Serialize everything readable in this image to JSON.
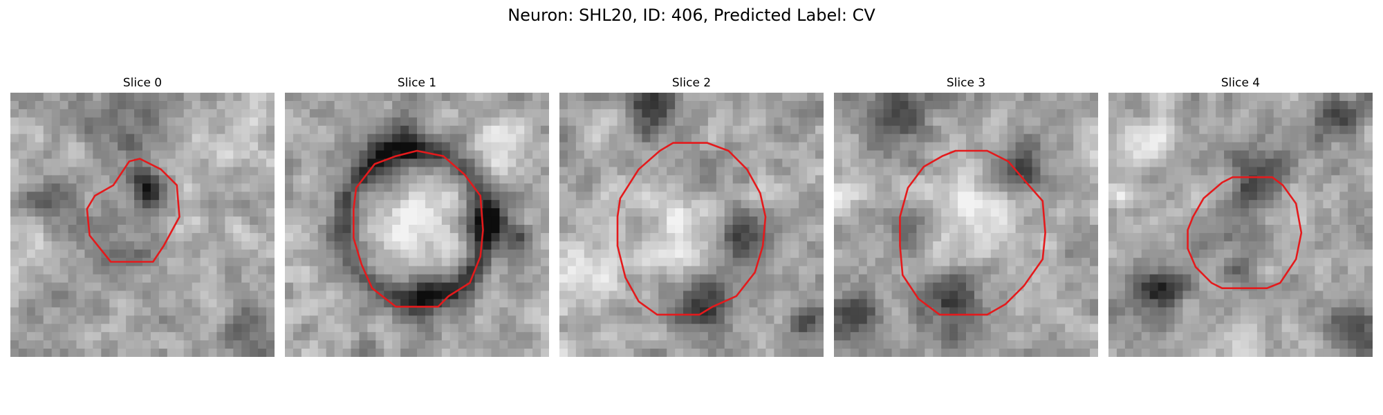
{
  "figure": {
    "title": "Neuron: SHL20, ID: 406, Predicted Label: CV",
    "contour_color": "#e41a1c",
    "slices": [
      {
        "label": "Slice 0",
        "seed": 11,
        "dark_blobs": [
          [
            0.52,
            0.36,
            0.07,
            0.55
          ],
          [
            0.4,
            0.6,
            0.12,
            0.25
          ],
          [
            0.15,
            0.45,
            0.12,
            0.25
          ],
          [
            0.45,
            0.1,
            0.18,
            0.2
          ],
          [
            0.9,
            0.9,
            0.1,
            0.25
          ]
        ],
        "light_blobs": [
          [
            0.85,
            0.15,
            0.15,
            0.2
          ],
          [
            0.1,
            0.55,
            0.08,
            0.2
          ]
        ],
        "contour": [
          [
            0.39,
            0.35
          ],
          [
            0.45,
            0.26
          ],
          [
            0.49,
            0.25
          ],
          [
            0.57,
            0.29
          ],
          [
            0.63,
            0.35
          ],
          [
            0.64,
            0.47
          ],
          [
            0.58,
            0.58
          ],
          [
            0.54,
            0.64
          ],
          [
            0.5,
            0.64
          ],
          [
            0.38,
            0.64
          ],
          [
            0.3,
            0.54
          ],
          [
            0.29,
            0.44
          ],
          [
            0.32,
            0.39
          ]
        ]
      },
      {
        "label": "Slice 1",
        "seed": 23,
        "dark_blobs": [
          [
            0.5,
            0.5,
            0.28,
            0.0
          ],
          [
            0.55,
            0.8,
            0.1,
            0.3
          ],
          [
            0.75,
            0.5,
            0.08,
            0.4
          ],
          [
            0.4,
            0.2,
            0.12,
            0.3
          ],
          [
            0.9,
            0.55,
            0.05,
            0.4
          ]
        ],
        "light_blobs": [
          [
            0.5,
            0.5,
            0.16,
            0.25
          ],
          [
            0.85,
            0.2,
            0.12,
            0.2
          ]
        ],
        "contour": [
          [
            0.27,
            0.36
          ],
          [
            0.34,
            0.27
          ],
          [
            0.42,
            0.24
          ],
          [
            0.5,
            0.22
          ],
          [
            0.6,
            0.24
          ],
          [
            0.68,
            0.31
          ],
          [
            0.74,
            0.39
          ],
          [
            0.75,
            0.52
          ],
          [
            0.74,
            0.62
          ],
          [
            0.7,
            0.72
          ],
          [
            0.62,
            0.77
          ],
          [
            0.58,
            0.81
          ],
          [
            0.42,
            0.81
          ],
          [
            0.33,
            0.74
          ],
          [
            0.29,
            0.65
          ],
          [
            0.26,
            0.55
          ],
          [
            0.26,
            0.44
          ]
        ]
      },
      {
        "label": "Slice 2",
        "seed": 37,
        "dark_blobs": [
          [
            0.55,
            0.8,
            0.12,
            0.4
          ],
          [
            0.7,
            0.55,
            0.1,
            0.35
          ],
          [
            0.35,
            0.05,
            0.1,
            0.4
          ],
          [
            0.95,
            0.85,
            0.08,
            0.4
          ],
          [
            0.55,
            0.3,
            0.1,
            0.25
          ]
        ],
        "light_blobs": [
          [
            0.45,
            0.5,
            0.18,
            0.25
          ],
          [
            0.1,
            0.7,
            0.12,
            0.2
          ]
        ],
        "contour": [
          [
            0.23,
            0.4
          ],
          [
            0.3,
            0.29
          ],
          [
            0.38,
            0.22
          ],
          [
            0.43,
            0.19
          ],
          [
            0.56,
            0.19
          ],
          [
            0.64,
            0.22
          ],
          [
            0.71,
            0.29
          ],
          [
            0.76,
            0.38
          ],
          [
            0.78,
            0.47
          ],
          [
            0.77,
            0.58
          ],
          [
            0.74,
            0.68
          ],
          [
            0.67,
            0.77
          ],
          [
            0.58,
            0.81
          ],
          [
            0.53,
            0.84
          ],
          [
            0.37,
            0.84
          ],
          [
            0.3,
            0.79
          ],
          [
            0.25,
            0.7
          ],
          [
            0.22,
            0.58
          ],
          [
            0.22,
            0.47
          ]
        ]
      },
      {
        "label": "Slice 3",
        "seed": 53,
        "dark_blobs": [
          [
            0.45,
            0.8,
            0.12,
            0.45
          ],
          [
            0.25,
            0.1,
            0.12,
            0.35
          ],
          [
            0.08,
            0.85,
            0.1,
            0.35
          ],
          [
            0.7,
            0.3,
            0.1,
            0.35
          ],
          [
            0.3,
            0.5,
            0.08,
            0.25
          ]
        ],
        "light_blobs": [
          [
            0.52,
            0.48,
            0.18,
            0.28
          ],
          [
            0.05,
            0.35,
            0.08,
            0.2
          ]
        ],
        "contour": [
          [
            0.28,
            0.36
          ],
          [
            0.34,
            0.28
          ],
          [
            0.41,
            0.24
          ],
          [
            0.46,
            0.22
          ],
          [
            0.58,
            0.22
          ],
          [
            0.66,
            0.26
          ],
          [
            0.72,
            0.33
          ],
          [
            0.79,
            0.41
          ],
          [
            0.8,
            0.53
          ],
          [
            0.79,
            0.63
          ],
          [
            0.72,
            0.73
          ],
          [
            0.65,
            0.8
          ],
          [
            0.58,
            0.84
          ],
          [
            0.4,
            0.84
          ],
          [
            0.32,
            0.78
          ],
          [
            0.26,
            0.69
          ],
          [
            0.25,
            0.58
          ],
          [
            0.25,
            0.47
          ]
        ]
      },
      {
        "label": "Slice 4",
        "seed": 71,
        "dark_blobs": [
          [
            0.2,
            0.75,
            0.1,
            0.5
          ],
          [
            0.55,
            0.3,
            0.1,
            0.4
          ],
          [
            0.92,
            0.9,
            0.1,
            0.4
          ],
          [
            0.45,
            0.55,
            0.14,
            0.2
          ],
          [
            0.85,
            0.1,
            0.1,
            0.3
          ]
        ],
        "light_blobs": [
          [
            0.43,
            0.6,
            0.06,
            0.2
          ],
          [
            0.05,
            0.4,
            0.05,
            0.3
          ],
          [
            0.15,
            0.2,
            0.1,
            0.2
          ]
        ],
        "contour": [
          [
            0.36,
            0.4
          ],
          [
            0.43,
            0.34
          ],
          [
            0.47,
            0.32
          ],
          [
            0.62,
            0.32
          ],
          [
            0.66,
            0.35
          ],
          [
            0.71,
            0.42
          ],
          [
            0.73,
            0.53
          ],
          [
            0.71,
            0.63
          ],
          [
            0.65,
            0.72
          ],
          [
            0.6,
            0.74
          ],
          [
            0.43,
            0.74
          ],
          [
            0.39,
            0.72
          ],
          [
            0.33,
            0.66
          ],
          [
            0.3,
            0.59
          ],
          [
            0.3,
            0.52
          ],
          [
            0.32,
            0.47
          ]
        ]
      }
    ]
  }
}
